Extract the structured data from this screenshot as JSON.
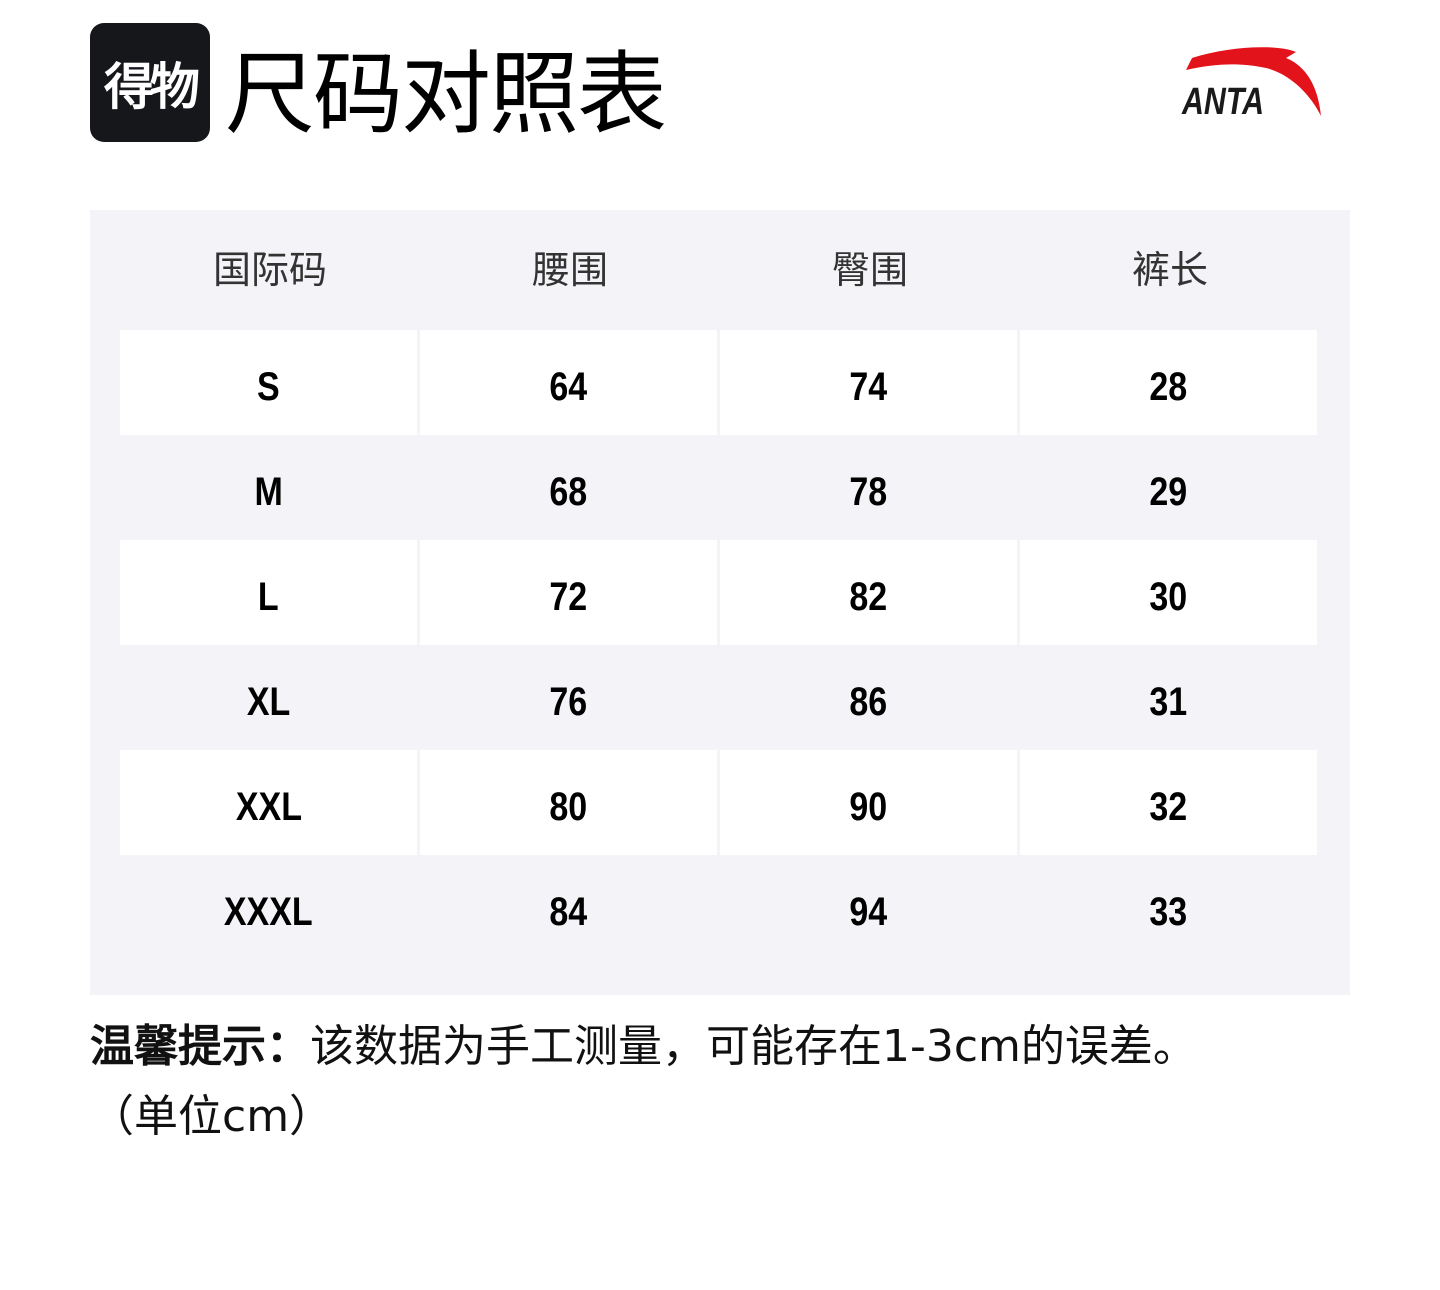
{
  "header": {
    "badge_text": "得物",
    "title": "尺码对照表",
    "brand_logo": "ANTA",
    "brand_color": "#e3131b"
  },
  "table": {
    "columns": [
      "国际码",
      "腰围",
      "臀围",
      "裤长"
    ],
    "rows": [
      [
        "S",
        "64",
        "74",
        "28"
      ],
      [
        "M",
        "68",
        "78",
        "29"
      ],
      [
        "L",
        "72",
        "82",
        "30"
      ],
      [
        "XL",
        "76",
        "86",
        "31"
      ],
      [
        "XXL",
        "80",
        "90",
        "32"
      ],
      [
        "XXXL",
        "84",
        "94",
        "33"
      ]
    ]
  },
  "note": {
    "label": "温馨提示：",
    "text": "该数据为手工测量，可能存在1-3cm的误差。",
    "unit": "（单位cm）"
  }
}
